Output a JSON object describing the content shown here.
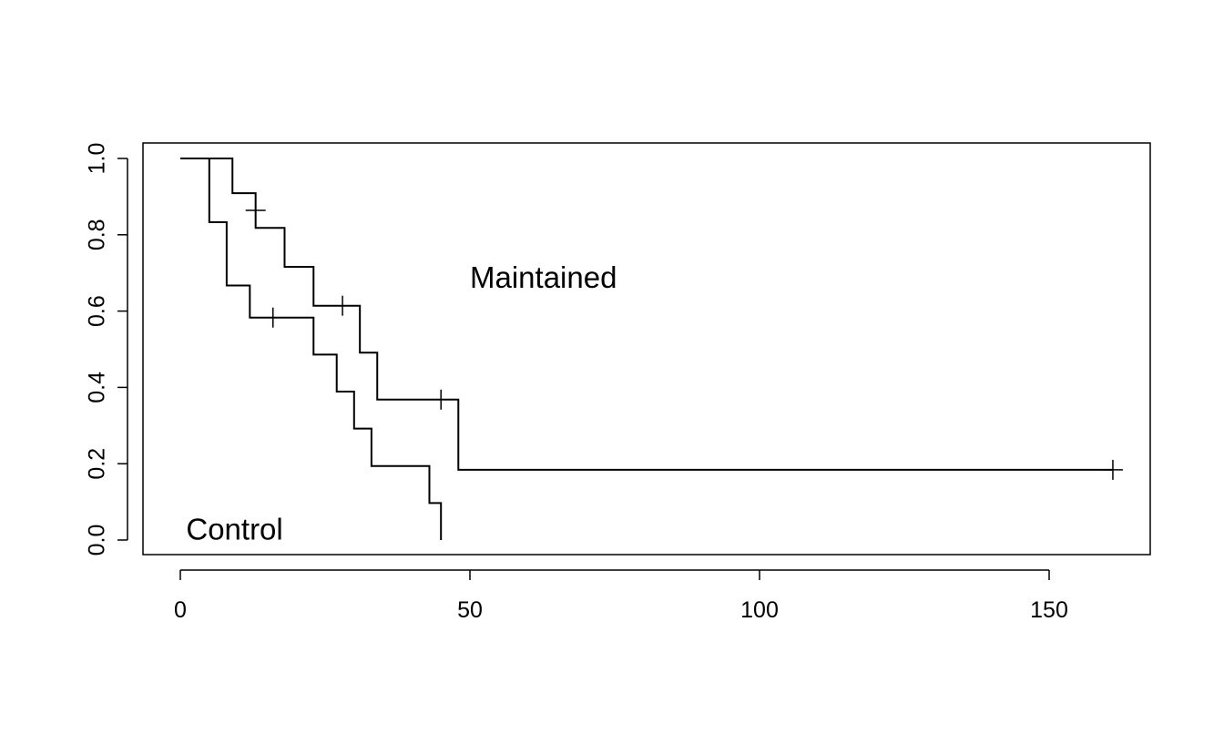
{
  "chart_data": {
    "type": "line",
    "title": "",
    "xlabel": "",
    "ylabel": "",
    "xlim": [
      0,
      161
    ],
    "ylim": [
      0,
      1
    ],
    "grid": false,
    "x_ticks": [
      0,
      50,
      100,
      150
    ],
    "x_tick_labels": [
      "0",
      "50",
      "100",
      "150"
    ],
    "y_ticks": [
      0,
      0.2,
      0.4,
      0.6,
      0.8,
      1.0
    ],
    "y_tick_labels": [
      "0.0",
      "0.2",
      "0.4",
      "0.6",
      "0.8",
      "1.0"
    ],
    "annotations": [
      {
        "text": "Maintained",
        "x": 50,
        "y": 0.69,
        "series": 0
      },
      {
        "text": "Control",
        "x": 1,
        "y": 0.03,
        "series": 1
      }
    ],
    "series": [
      {
        "steps": [
          [
            0,
            1.0
          ],
          [
            9,
            0.909
          ],
          [
            13,
            0.818
          ],
          [
            18,
            0.716
          ],
          [
            23,
            0.614
          ],
          [
            31,
            0.491
          ],
          [
            34,
            0.368
          ],
          [
            48,
            0.184
          ]
        ],
        "end_x": 161,
        "censored": [
          [
            13,
            0.864
          ],
          [
            28,
            0.614
          ],
          [
            45,
            0.368
          ],
          [
            161,
            0.184
          ]
        ]
      },
      {
        "steps": [
          [
            0,
            1.0
          ],
          [
            5,
            0.833
          ],
          [
            8,
            0.667
          ],
          [
            12,
            0.583
          ],
          [
            23,
            0.486
          ],
          [
            27,
            0.389
          ],
          [
            30,
            0.292
          ],
          [
            33,
            0.194
          ],
          [
            43,
            0.097
          ],
          [
            45,
            0.0
          ]
        ],
        "end_x": 45,
        "censored": [
          [
            16,
            0.583
          ]
        ]
      }
    ]
  }
}
